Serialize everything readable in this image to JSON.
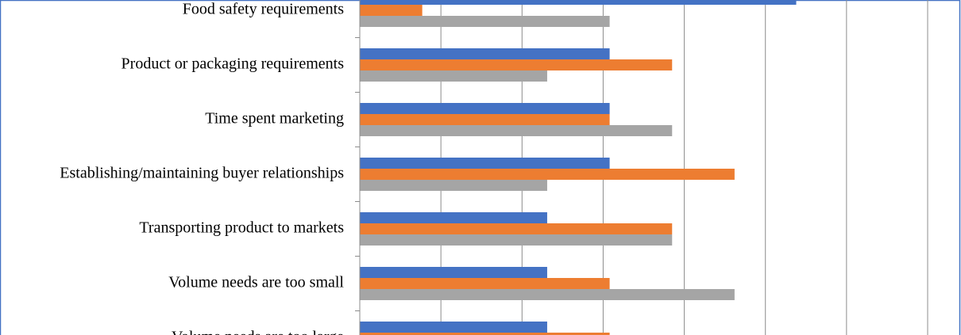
{
  "chart_data": {
    "type": "bar",
    "orientation": "horizontal",
    "categories": [
      "Food safety requirements",
      "Product or packaging requirements",
      "Time spent marketing",
      "Establishing/maintaining buyer relationships",
      "Transporting product to markets",
      "Volume needs are too small",
      "Volume needs are too large"
    ],
    "series": [
      {
        "color": "#4472c4",
        "values": [
          53.8,
          30.8,
          30.8,
          30.8,
          23.1,
          23.1,
          23.1
        ]
      },
      {
        "color": "#ed7d31",
        "values": [
          7.7,
          38.5,
          30.8,
          46.2,
          38.5,
          30.8,
          30.8
        ]
      },
      {
        "color": "#a5a5a5",
        "values": [
          30.8,
          23.1,
          38.5,
          23.1,
          38.5,
          46.2,
          null
        ]
      }
    ],
    "xlim": [
      0,
      70
    ],
    "xticks": [
      0,
      10,
      20,
      30,
      40,
      50,
      60,
      70
    ],
    "grid": true
  }
}
